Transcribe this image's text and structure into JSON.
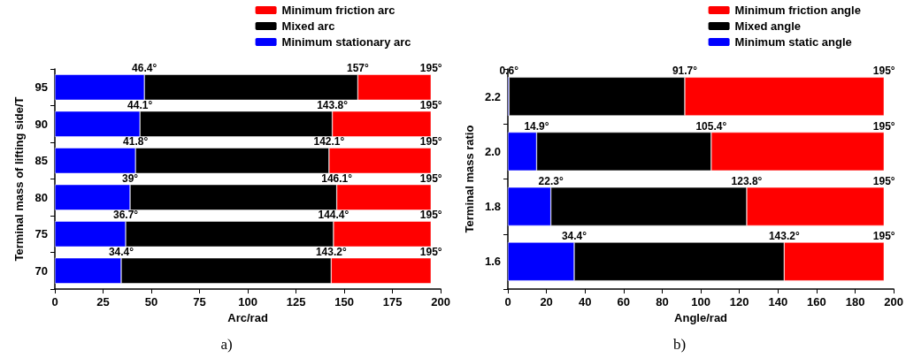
{
  "chart_data": [
    {
      "type": "bar",
      "orientation": "horizontal",
      "stacked": true,
      "categories": [
        "95",
        "90",
        "85",
        "80",
        "75",
        "70"
      ],
      "xlabel": "Arc/rad",
      "ylabel": "Terminal mass of lifting side/T",
      "xlim": [
        0,
        200
      ],
      "xticks": [
        0,
        25,
        50,
        75,
        100,
        125,
        150,
        175,
        200
      ],
      "legend": "top",
      "grid": false,
      "annotations": [
        "a)",
        {
          "text": "46.4°",
          "x": 46.4,
          "y": "95"
        },
        {
          "text": "157°",
          "x": 157,
          "y": "95"
        },
        {
          "text": "195°",
          "x": 195,
          "y": "95"
        },
        {
          "text": "44.1°",
          "x": 44.1,
          "y": "90"
        },
        {
          "text": "143.8°",
          "x": 143.8,
          "y": "90"
        },
        {
          "text": "195°",
          "x": 195,
          "y": "90"
        },
        {
          "text": "41.8°",
          "x": 41.8,
          "y": "85"
        },
        {
          "text": "142.1°",
          "x": 142.1,
          "y": "85"
        },
        {
          "text": "195°",
          "x": 195,
          "y": "85"
        },
        {
          "text": "39°",
          "x": 39,
          "y": "80"
        },
        {
          "text": "146.1°",
          "x": 146.1,
          "y": "80"
        },
        {
          "text": "195°",
          "x": 195,
          "y": "80"
        },
        {
          "text": "36.7°",
          "x": 36.7,
          "y": "75"
        },
        {
          "text": "144.4°",
          "x": 144.4,
          "y": "75"
        },
        {
          "text": "195°",
          "x": 195,
          "y": "75"
        },
        {
          "text": "34.4°",
          "x": 34.4,
          "y": "70"
        },
        {
          "text": "143.2°",
          "x": 143.2,
          "y": "70"
        },
        {
          "text": "195°",
          "x": 195,
          "y": "70"
        }
      ],
      "series": [
        {
          "name": "Minimum stationary arc",
          "color": "#0000ff",
          "values": [
            46.4,
            44.1,
            41.8,
            39,
            36.7,
            34.4
          ]
        },
        {
          "name": "Mixed arc",
          "color": "#000000",
          "values": [
            110.6,
            99.7,
            100.3,
            107.1,
            107.7,
            108.8
          ]
        },
        {
          "name": "Minimum friction arc",
          "color": "#ff0000",
          "values": [
            38,
            51.2,
            52.9,
            48.9,
            50.6,
            51.8
          ]
        }
      ]
    },
    {
      "type": "bar",
      "orientation": "horizontal",
      "stacked": true,
      "categories": [
        "2.2",
        "2.0",
        "1.8",
        "1.6"
      ],
      "xlabel": "Angle/rad",
      "ylabel": "Terminal mass ratio",
      "xlim": [
        0,
        200
      ],
      "xticks": [
        0,
        20,
        40,
        60,
        80,
        100,
        120,
        140,
        160,
        180,
        200
      ],
      "legend": "top",
      "grid": false,
      "annotations": [
        "b)",
        {
          "text": "0.6°",
          "x": 0.6,
          "y": "2.2"
        },
        {
          "text": "91.7°",
          "x": 91.7,
          "y": "2.2"
        },
        {
          "text": "195°",
          "x": 195,
          "y": "2.2"
        },
        {
          "text": "14.9°",
          "x": 14.9,
          "y": "2.0"
        },
        {
          "text": "105.4°",
          "x": 105.4,
          "y": "2.0"
        },
        {
          "text": "195°",
          "x": 195,
          "y": "2.0"
        },
        {
          "text": "22.3°",
          "x": 22.3,
          "y": "1.8"
        },
        {
          "text": "123.8°",
          "x": 123.8,
          "y": "1.8"
        },
        {
          "text": "195°",
          "x": 195,
          "y": "1.8"
        },
        {
          "text": "34.4°",
          "x": 34.4,
          "y": "1.6"
        },
        {
          "text": "143.2°",
          "x": 143.2,
          "y": "1.6"
        },
        {
          "text": "195°",
          "x": 195,
          "y": "1.6"
        }
      ],
      "series": [
        {
          "name": "Minimum static angle",
          "color": "#0000ff",
          "values": [
            0.6,
            14.9,
            22.3,
            34.4
          ]
        },
        {
          "name": "Mixed angle",
          "color": "#000000",
          "values": [
            91.1,
            90.5,
            101.5,
            108.8
          ]
        },
        {
          "name": "Minimum friction angle",
          "color": "#ff0000",
          "values": [
            103.3,
            89.6,
            71.2,
            51.8
          ]
        }
      ]
    }
  ]
}
